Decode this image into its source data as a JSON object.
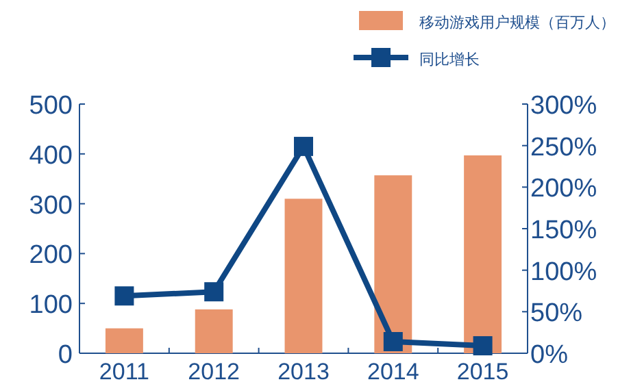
{
  "chart_data": {
    "type": "bar",
    "categories": [
      "2011",
      "2012",
      "2013",
      "2014",
      "2015"
    ],
    "series": [
      {
        "name": "移动游戏用户规模（百万人）",
        "color": "#e9956d",
        "values": [
          50,
          88,
          310,
          357,
          397
        ]
      },
      {
        "name": "同比增长",
        "type": "line",
        "axis": "y2",
        "color": "#0f4784",
        "marker": "square",
        "values": [
          69,
          74,
          249,
          14,
          9
        ]
      }
    ],
    "ylim": [
      0,
      500
    ],
    "yticks": [
      0,
      100,
      200,
      300,
      400,
      500
    ],
    "y2lim": [
      0,
      300
    ],
    "y2ticks": [
      {
        "value": 0,
        "label": "0%"
      },
      {
        "value": 50,
        "label": "50%"
      },
      {
        "value": 100,
        "label": "100%"
      },
      {
        "value": 150,
        "label": "150%"
      },
      {
        "value": 200,
        "label": "200%"
      },
      {
        "value": 250,
        "label": "250%"
      },
      {
        "value": 300,
        "label": "300%"
      }
    ],
    "legend": "top",
    "grid": false
  }
}
